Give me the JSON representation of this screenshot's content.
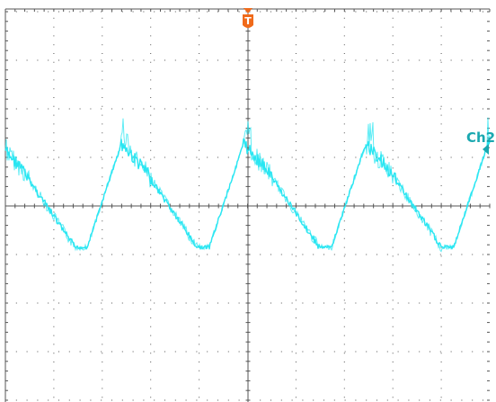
{
  "trigger": {
    "label": "T",
    "color": "#f06a1a"
  },
  "channel": {
    "label": "Ch2",
    "color": "#1aa8b0",
    "trace_color": "#29e6f2"
  },
  "grid": {
    "color": "#555555",
    "divisions_x": 10,
    "divisions_y": 8
  },
  "icons": {
    "trigger_marker": "trigger-marker-icon",
    "channel_marker": "channel-level-arrow-icon"
  }
}
